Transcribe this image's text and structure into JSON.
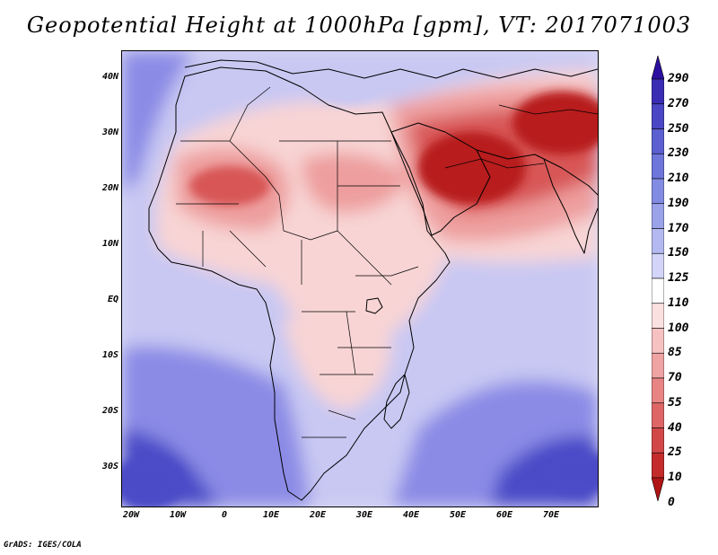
{
  "title": "Geopotential Height at 1000hPa [gpm], VT: 2017071003",
  "credit": "GrADS: IGES/COLA",
  "map": {
    "lat_labels": [
      "40N",
      "30N",
      "20N",
      "10N",
      "EQ",
      "10S",
      "20S",
      "30S"
    ],
    "lon_labels": [
      "20W",
      "10W",
      "0",
      "10E",
      "20E",
      "30E",
      "40E",
      "50E",
      "60E",
      "70E"
    ]
  },
  "colorbar": {
    "levels": [
      "290",
      "270",
      "250",
      "230",
      "210",
      "190",
      "170",
      "150",
      "125",
      "110",
      "100",
      "85",
      "70",
      "55",
      "40",
      "25",
      "10",
      "0"
    ],
    "colors": [
      "#2c0fa0",
      "#3a2db4",
      "#4a46c4",
      "#5b5fd0",
      "#6e76da",
      "#838ce3",
      "#9aa2ea",
      "#b4baf1",
      "#d2d5f7",
      "#ffffff",
      "#fbe0e0",
      "#f6c1c1",
      "#f0a3a3",
      "#e88484",
      "#de6666",
      "#d24848",
      "#c42c2c",
      "#b01414"
    ]
  },
  "field_colors": {
    "ocean_deep": "#4c4cc8",
    "ocean_mid": "#8b8be6",
    "ocean_light": "#c8c8f3",
    "neutral": "#ffffff",
    "land_light": "#f8d4d4",
    "land_mid": "#ee9e9e",
    "land_high": "#d85656",
    "land_max": "#b81e1e"
  }
}
